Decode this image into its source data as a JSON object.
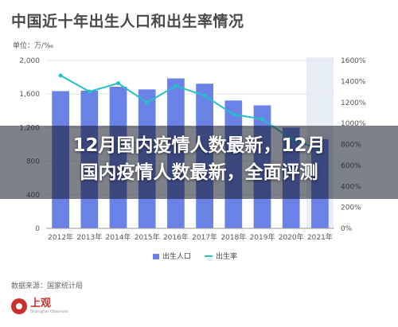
{
  "title": "中国近十年出生人口和出生率情况",
  "units_label": "单位：万/‰",
  "headline": {
    "line1": "12月国内疫情人数最新，12月",
    "line2": "国内疫情人数最新，全面评测"
  },
  "source": "数据来源：国家统计局",
  "logo": {
    "name": "上观",
    "subtitle": "Shanghai Observer"
  },
  "colors": {
    "bar": "#6a82e6",
    "line": "#26bfc9",
    "highlight": "#e8eef8",
    "grid": "#e5e5e5",
    "axis_text": "#555555"
  },
  "chart_data": {
    "type": "bar",
    "categories": [
      "2012年",
      "2013年",
      "2014年",
      "2015年",
      "2016年",
      "2017年",
      "2018年",
      "2019年",
      "2020年",
      "2021年"
    ],
    "series": [
      {
        "name": "出生人口",
        "type": "bar",
        "axis": "left",
        "values": [
          1635,
          1640,
          1687,
          1655,
          1786,
          1723,
          1523,
          1465,
          1200,
          1062
        ]
      },
      {
        "name": "出生率",
        "type": "line",
        "axis": "right",
        "values": [
          14.57,
          13.03,
          13.83,
          11.99,
          13.57,
          12.64,
          10.86,
          10.41,
          8.52,
          7.52
        ]
      }
    ],
    "y_left": {
      "min": 0,
      "max": 2000,
      "ticks": [
        "0",
        "400",
        "800",
        "1,200",
        "1,600",
        "2,000"
      ]
    },
    "y_right": {
      "min": 0,
      "max": 16,
      "ticks": [
        "0%",
        "200%",
        "400%",
        "600%",
        "800%",
        "1000%",
        "1200%",
        "1400%",
        "1600%"
      ]
    },
    "highlight_category": "2021年",
    "legend": {
      "position": "bottom",
      "items": [
        "出生人口",
        "出生率"
      ]
    },
    "grid": true
  }
}
